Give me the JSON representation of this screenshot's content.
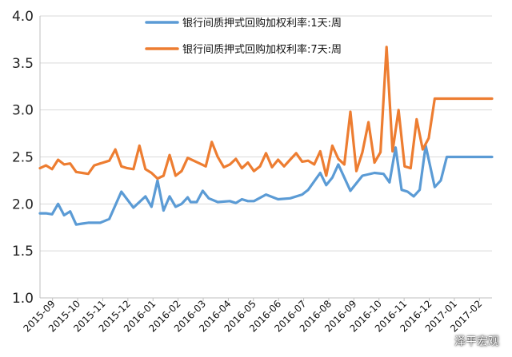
{
  "chart_data": {
    "type": "line",
    "title": "",
    "xlabel": "",
    "ylabel": "",
    "ylim": [
      1.0,
      4.0
    ],
    "yticks": [
      "1.0",
      "1.5",
      "2.0",
      "2.5",
      "3.0",
      "3.5",
      "4.0"
    ],
    "grid": true,
    "legend_position": "top",
    "x_tick_labels": [
      "2015-09",
      "2015-10",
      "2015-11",
      "2015-12",
      "2016-01",
      "2016-02",
      "2016-03",
      "2016-04",
      "2016-05",
      "2016-06",
      "2016-07",
      "2016-08",
      "2016-09",
      "2016-10",
      "2016-11",
      "2016-12",
      "2017-01",
      "2017-02"
    ],
    "series": [
      {
        "name": "银行间质押式回购加权利率:1天:周",
        "color": "#5b9bd5",
        "x": [
          2015.67,
          2015.69,
          2015.71,
          2015.73,
          2015.75,
          2015.77,
          2015.79,
          2015.81,
          2015.83,
          2015.85,
          2015.87,
          2015.9,
          2015.94,
          2015.98,
          2016.02,
          2016.04,
          2016.06,
          2016.08,
          2016.1,
          2016.12,
          2016.14,
          2016.16,
          2016.17,
          2016.19,
          2016.21,
          2016.23,
          2016.26,
          2016.3,
          2016.32,
          2016.34,
          2016.36,
          2016.38,
          2016.42,
          2016.46,
          2016.5,
          2016.54,
          2016.56,
          2016.6,
          2016.62,
          2016.64,
          2016.66,
          2016.7,
          2016.74,
          2016.78,
          2016.81,
          2016.83,
          2016.85,
          2016.87,
          2016.89,
          2016.91,
          2016.93,
          2016.95,
          2016.98,
          2017.0,
          2017.02,
          2017.04,
          2017.06,
          2017.08,
          2017.1,
          2017.12,
          2017.14,
          2017.16,
          2017.17
        ],
        "values": [
          1.9,
          1.9,
          1.89,
          2.0,
          1.88,
          1.92,
          1.78,
          1.79,
          1.8,
          1.8,
          1.8,
          1.84,
          2.13,
          1.96,
          2.08,
          1.97,
          2.25,
          1.93,
          2.08,
          1.97,
          2.0,
          2.07,
          2.02,
          2.02,
          2.14,
          2.06,
          2.02,
          2.03,
          2.01,
          2.05,
          2.03,
          2.03,
          2.1,
          2.05,
          2.06,
          2.1,
          2.15,
          2.33,
          2.2,
          2.28,
          2.42,
          2.14,
          2.3,
          2.33,
          2.32,
          2.23,
          2.6,
          2.15,
          2.13,
          2.08,
          2.15,
          2.62,
          2.18,
          2.25,
          2.5,
          2.5,
          2.5,
          2.5,
          2.5,
          2.5,
          2.5,
          2.5,
          2.5
        ]
      },
      {
        "name": "银行间质押式回购加权利率:7天:周",
        "color": "#ed7d31",
        "x": [
          2015.67,
          2015.69,
          2015.71,
          2015.73,
          2015.75,
          2015.77,
          2015.79,
          2015.81,
          2015.83,
          2015.85,
          2015.87,
          2015.9,
          2015.92,
          2015.94,
          2015.96,
          2015.98,
          2016.0,
          2016.02,
          2016.04,
          2016.06,
          2016.08,
          2016.1,
          2016.12,
          2016.14,
          2016.16,
          2016.18,
          2016.2,
          2016.22,
          2016.24,
          2016.26,
          2016.28,
          2016.3,
          2016.32,
          2016.34,
          2016.36,
          2016.38,
          2016.4,
          2016.42,
          2016.44,
          2016.46,
          2016.48,
          2016.5,
          2016.52,
          2016.54,
          2016.56,
          2016.58,
          2016.6,
          2016.62,
          2016.64,
          2016.66,
          2016.68,
          2016.7,
          2016.72,
          2016.74,
          2016.76,
          2016.78,
          2016.8,
          2016.82,
          2016.84,
          2016.86,
          2016.88,
          2016.9,
          2016.92,
          2016.94,
          2016.96,
          2016.98,
          2017.0,
          2017.02,
          2017.04,
          2017.06,
          2017.08,
          2017.1,
          2017.12,
          2017.14,
          2017.16,
          2017.17
        ],
        "values": [
          2.38,
          2.41,
          2.37,
          2.47,
          2.42,
          2.43,
          2.34,
          2.33,
          2.32,
          2.41,
          2.43,
          2.46,
          2.58,
          2.4,
          2.38,
          2.37,
          2.62,
          2.37,
          2.33,
          2.27,
          2.3,
          2.52,
          2.3,
          2.35,
          2.49,
          2.46,
          2.43,
          2.4,
          2.66,
          2.5,
          2.39,
          2.42,
          2.48,
          2.38,
          2.44,
          2.35,
          2.4,
          2.54,
          2.39,
          2.47,
          2.4,
          2.47,
          2.54,
          2.45,
          2.46,
          2.42,
          2.56,
          2.3,
          2.62,
          2.48,
          2.42,
          2.98,
          2.35,
          2.55,
          2.87,
          2.44,
          2.55,
          3.67,
          2.56,
          3.0,
          2.4,
          2.38,
          2.9,
          2.58,
          2.7,
          3.12,
          3.12,
          3.12,
          3.12,
          3.12,
          3.12,
          3.12,
          3.12,
          3.12,
          3.12,
          3.12
        ]
      }
    ]
  },
  "watermark": "泽平宏观"
}
